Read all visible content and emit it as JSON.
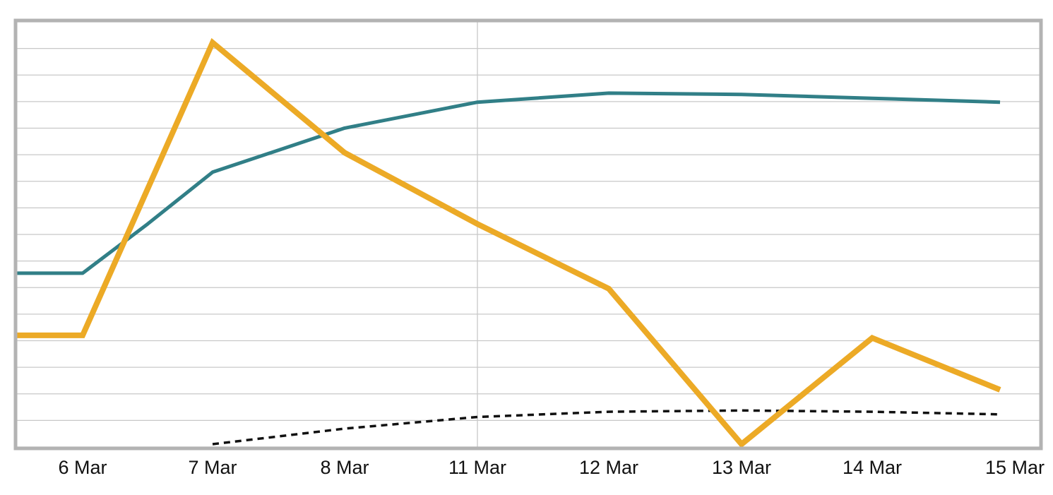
{
  "chart_data": {
    "type": "line",
    "title": "",
    "xlabel": "",
    "ylabel": "",
    "categories": [
      "6 Mar",
      "7 Mar",
      "8 Mar",
      "11 Mar",
      "12 Mar",
      "13 Mar",
      "14 Mar",
      "15 Mar"
    ],
    "grid": true,
    "legend": "none",
    "y_axis_labels": "none",
    "ylim": [
      0,
      16
    ],
    "series": [
      {
        "color": "#ecaa26",
        "style": "thick-solid",
        "x": [
          -0.5,
          0,
          1,
          2,
          3,
          4,
          5,
          6,
          7
        ],
        "values": [
          4.2,
          4.2,
          15.5,
          11.25,
          8.5,
          6.0,
          0.0,
          4.1,
          2.1
        ]
      },
      {
        "color": "#317f87",
        "style": "solid",
        "x": [
          -0.5,
          0,
          0.5,
          1,
          2,
          3,
          4,
          5,
          6,
          7
        ],
        "values": [
          6.6,
          6.6,
          8.5,
          10.5,
          12.2,
          13.2,
          13.55,
          13.5,
          13.35,
          13.2
        ]
      },
      {
        "color": "#111111",
        "style": "dotted",
        "x": [
          1,
          2,
          3,
          4,
          5,
          6,
          7
        ],
        "values": [
          0.0,
          0.6,
          1.05,
          1.25,
          1.3,
          1.25,
          1.15
        ]
      }
    ]
  }
}
